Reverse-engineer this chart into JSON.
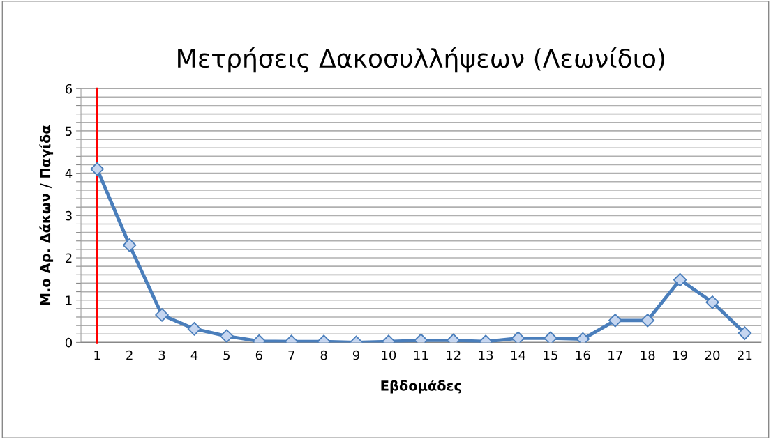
{
  "chart_data": {
    "type": "line",
    "title": "Μετρήσεις Δακοσυλλήψεων (Λεωνίδιο)",
    "xlabel": "Εβδομάδες",
    "ylabel": "Μ.ο Αρ. Δάκων / Παγίδα",
    "categories": [
      "1",
      "2",
      "3",
      "4",
      "5",
      "6",
      "7",
      "8",
      "9",
      "10",
      "11",
      "12",
      "13",
      "14",
      "15",
      "16",
      "17",
      "18",
      "19",
      "20",
      "21"
    ],
    "series": [
      {
        "color": "#4a7ebb",
        "values": [
          4.1,
          2.3,
          0.65,
          0.32,
          0.15,
          0.03,
          0.02,
          0.02,
          0.0,
          0.02,
          0.05,
          0.05,
          0.02,
          0.1,
          0.1,
          0.08,
          0.52,
          0.52,
          1.48,
          0.95,
          0.22
        ]
      }
    ],
    "ylim": [
      0,
      6
    ],
    "yticks": [
      0,
      {
        "value": 0.2,
        "label": null
      },
      {
        "value": 0.4,
        "label": null
      },
      {
        "value": 0.6,
        "label": null
      },
      {
        "value": 0.8,
        "label": null
      },
      1,
      {
        "value": 1.2,
        "label": null
      },
      {
        "value": 1.4,
        "label": null
      },
      {
        "value": 1.6,
        "label": null
      },
      {
        "value": 1.8,
        "label": null
      },
      2,
      {
        "value": 2.2,
        "label": null
      },
      {
        "value": 2.4,
        "label": null
      },
      {
        "value": 2.6,
        "label": null
      },
      {
        "value": 2.8,
        "label": null
      },
      3,
      {
        "value": 3.2,
        "label": null
      },
      {
        "value": 3.4,
        "label": null
      },
      {
        "value": 3.6,
        "label": null
      },
      {
        "value": 3.8,
        "label": null
      },
      4,
      {
        "value": 4.2,
        "label": null
      },
      {
        "value": 4.4,
        "label": null
      },
      {
        "value": 4.6,
        "label": null
      },
      {
        "value": 4.8,
        "label": null
      },
      5,
      {
        "value": 5.2,
        "label": null
      },
      {
        "value": 5.4,
        "label": null
      },
      {
        "value": 5.6,
        "label": null
      },
      {
        "value": 5.8,
        "label": null
      },
      6
    ],
    "ref_lines": [
      {
        "axis": "x",
        "value": "1",
        "color": "#ff0000",
        "line_style": "solid"
      }
    ],
    "grid": "y",
    "marker": "diamond",
    "line_style": "solid",
    "legend": false
  }
}
